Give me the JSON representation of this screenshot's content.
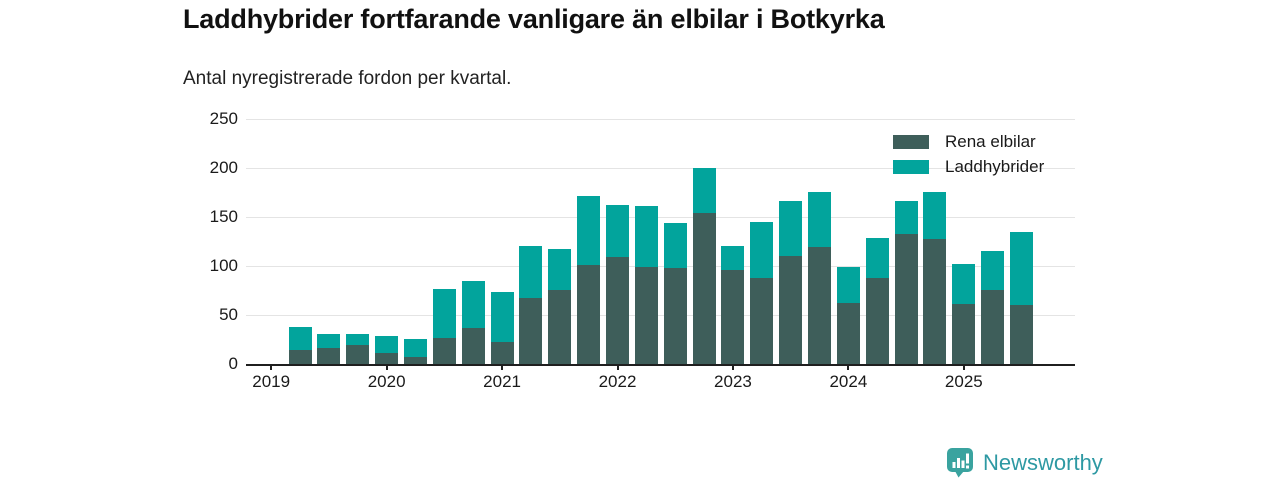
{
  "header": {
    "title": "Laddhybrider fortfarande vanligare än elbilar i Botkyrka",
    "subtitle": "Antal nyregistrerade fordon per kvartal."
  },
  "chart_data": {
    "type": "bar",
    "stacked": true,
    "title": "Laddhybrider fortfarande vanligare än elbilar i Botkyrka",
    "subtitle": "Antal nyregistrerade fordon per kvartal.",
    "xlabel": "",
    "ylabel": "Antal nyregistrerade fordon",
    "ylim": [
      0,
      250
    ],
    "yticks": [
      0,
      50,
      100,
      150,
      200,
      250
    ],
    "year_ticks": [
      "2019",
      "2020",
      "2021",
      "2022",
      "2023",
      "2024",
      "2025"
    ],
    "grid": true,
    "legend_position": "top-right",
    "categories": [
      "2019 Q2",
      "2019 Q3",
      "2019 Q4",
      "2020 Q1",
      "2020 Q2",
      "2020 Q3",
      "2020 Q4",
      "2021 Q1",
      "2021 Q2",
      "2021 Q3",
      "2021 Q4",
      "2022 Q1",
      "2022 Q2",
      "2022 Q3",
      "2022 Q4",
      "2023 Q1",
      "2023 Q2",
      "2023 Q3",
      "2023 Q4",
      "2024 Q1",
      "2024 Q2",
      "2024 Q3",
      "2024 Q4",
      "2025 Q1",
      "2025 Q2",
      "2025 Q3"
    ],
    "series": [
      {
        "name": "Rena elbilar",
        "color": "#3e5e5a",
        "values": [
          14,
          16,
          19,
          11,
          7,
          27,
          37,
          22,
          67,
          76,
          101,
          109,
          99,
          98,
          154,
          96,
          88,
          110,
          119,
          62,
          88,
          133,
          128,
          61,
          76,
          60
        ]
      },
      {
        "name": "Laddhybrider",
        "color": "#02a49c",
        "values": [
          24,
          15,
          12,
          18,
          19,
          50,
          48,
          52,
          53,
          41,
          70,
          53,
          62,
          46,
          46,
          24,
          57,
          56,
          57,
          37,
          41,
          33,
          48,
          41,
          39,
          75
        ]
      }
    ]
  },
  "colors": {
    "rena_elbilar": "#3e5e5a",
    "laddhybrider": "#02a49c",
    "gridline": "#e4e4e4",
    "axis": "#1f1f1f",
    "text": "#1a1a1a",
    "brand_icon": "#3aa39f",
    "brand_text": "#2e99a3"
  },
  "footer": {
    "brand": "Newsworthy"
  }
}
